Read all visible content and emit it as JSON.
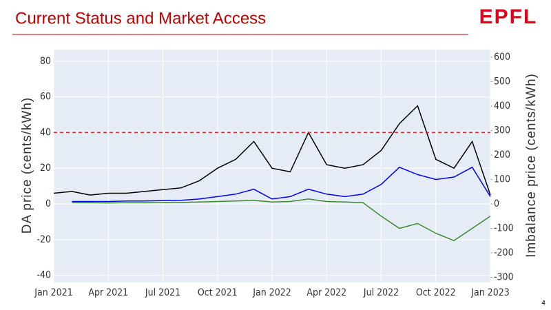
{
  "slide": {
    "title": "Current Status and Market Access",
    "logo": "EPFL",
    "page_number": "4"
  },
  "chart_data": {
    "type": "line",
    "y_label": "DA price (cents/kWh)",
    "y2_label": "Imbalance price (cents/kWh)",
    "x": [
      "2021-01",
      "2021-02",
      "2021-03",
      "2021-04",
      "2021-05",
      "2021-06",
      "2021-07",
      "2021-08",
      "2021-09",
      "2021-10",
      "2021-11",
      "2021-12",
      "2022-01",
      "2022-02",
      "2022-03",
      "2022-04",
      "2022-05",
      "2022-06",
      "2022-07",
      "2022-08",
      "2022-09",
      "2022-10",
      "2022-11",
      "2022-12",
      "2023-01"
    ],
    "series": [
      {
        "color": "#000000",
        "values": [
          6,
          7,
          5,
          6,
          6,
          7,
          8,
          9,
          13,
          20,
          25,
          35,
          20,
          18,
          40,
          22,
          20,
          22,
          30,
          45,
          55,
          25,
          20,
          35,
          5
        ]
      },
      {
        "color": "#0000ee",
        "axis": "y2",
        "values": [
          null,
          10,
          10,
          10,
          12,
          12,
          14,
          15,
          20,
          30,
          40,
          60,
          20,
          30,
          60,
          40,
          30,
          40,
          80,
          150,
          120,
          100,
          110,
          150,
          30
        ]
      },
      {
        "color": "#3a8a2a",
        "axis": "y2",
        "values": [
          null,
          5,
          5,
          4,
          5,
          5,
          6,
          6,
          8,
          10,
          12,
          15,
          8,
          10,
          20,
          10,
          8,
          5,
          -50,
          -100,
          -80,
          -120,
          -150,
          -100,
          -50
        ]
      }
    ],
    "reference_line": {
      "value": 40,
      "color": "#d62728"
    },
    "xlim": [
      "2021-01",
      "2023-01"
    ],
    "xticks": [
      {
        "value": "2021-01",
        "label": "Jan 2021"
      },
      {
        "value": "2021-04",
        "label": "Apr 2021"
      },
      {
        "value": "2021-07",
        "label": "Jul 2021"
      },
      {
        "value": "2021-10",
        "label": "Oct 2021"
      },
      {
        "value": "2022-01",
        "label": "Jan 2022"
      },
      {
        "value": "2022-04",
        "label": "Apr 2022"
      },
      {
        "value": "2022-07",
        "label": "Jul 2022"
      },
      {
        "value": "2022-10",
        "label": "Oct 2022"
      },
      {
        "value": "2023-01",
        "label": "Jan 2023"
      }
    ],
    "ylim": [
      -44,
      86.5
    ],
    "yticks": [
      -40,
      -20,
      0,
      20,
      40,
      60,
      80
    ],
    "y2lim": [
      -321,
      631
    ],
    "y2ticks": [
      -300,
      -200,
      -100,
      0,
      100,
      200,
      300,
      400,
      500,
      600
    ],
    "grid": true
  }
}
